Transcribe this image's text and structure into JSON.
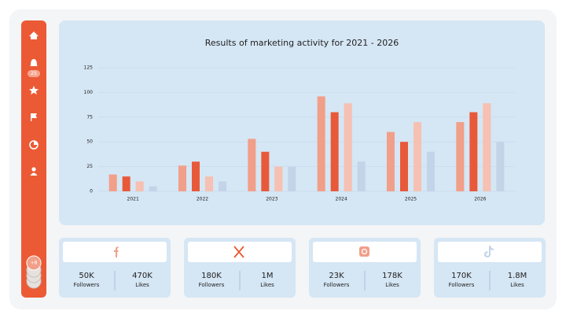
{
  "sidebar": {
    "badge": "25",
    "more": "+8"
  },
  "chart_data": {
    "type": "bar",
    "title": "Results of marketing activity for 2021 - 2026",
    "categories": [
      "2021",
      "2022",
      "2023",
      "2024",
      "2025",
      "2026"
    ],
    "series": [
      {
        "color": "#f19f88",
        "values": [
          17,
          26,
          53,
          96,
          60,
          70
        ]
      },
      {
        "color": "#e8593a",
        "values": [
          15,
          30,
          40,
          80,
          50,
          80
        ]
      },
      {
        "color": "#f6c0b2",
        "values": [
          10,
          15,
          25,
          89,
          70,
          89
        ]
      },
      {
        "color": "#c3d4e8",
        "values": [
          5,
          10,
          25,
          30,
          40,
          50
        ]
      }
    ],
    "ylim": [
      0,
      125
    ],
    "yticks": [
      0,
      25,
      50,
      75,
      100,
      125
    ],
    "grid": true
  },
  "cards": [
    {
      "followers": "50K",
      "followers_label": "Followers",
      "likes": "470K",
      "likes_label": "Likes"
    },
    {
      "followers": "180K",
      "followers_label": "Followers",
      "likes": "1M",
      "likes_label": "Likes"
    },
    {
      "followers": "23K",
      "followers_label": "Followers",
      "likes": "178K",
      "likes_label": "Likes"
    },
    {
      "followers": "170K",
      "followers_label": "Followers",
      "likes": "1.8M",
      "likes_label": "Likes"
    }
  ]
}
